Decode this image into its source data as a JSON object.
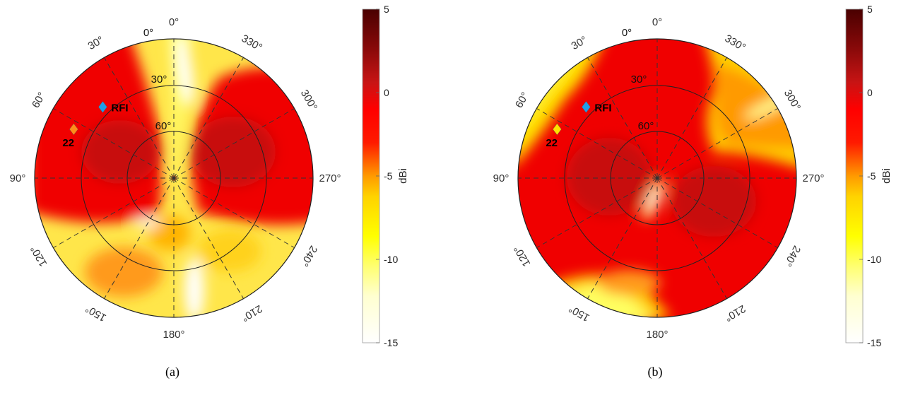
{
  "chart_data": [
    {
      "type": "heatmap",
      "projection": "polar",
      "caption": "(a)",
      "azimuth_labels": [
        "0°",
        "330°",
        "300°",
        "270°",
        "240°",
        "210°",
        "180°",
        "150°",
        "120°",
        "90°",
        "60°",
        "30°"
      ],
      "azimuth_values": [
        0,
        330,
        300,
        270,
        240,
        210,
        180,
        150,
        120,
        90,
        60,
        30
      ],
      "elevation_labels": [
        "0°",
        "30°",
        "60°"
      ],
      "elevation_values": [
        0,
        30,
        60
      ],
      "colorbar": {
        "label": "dBi",
        "ticks": [
          5,
          0,
          -5,
          -10,
          -15
        ],
        "range": [
          -15,
          5
        ],
        "colormap": "hot"
      },
      "markers": [
        {
          "label": "RFI",
          "shape": "diamond",
          "color": "#1e9ee8",
          "azimuth": 45,
          "elevation": 25
        },
        {
          "label": "22",
          "shape": "diamond",
          "color": "#ff8c1a",
          "azimuth": 64,
          "elevation": 18
        }
      ]
    },
    {
      "type": "heatmap",
      "projection": "polar",
      "caption": "(b)",
      "azimuth_labels": [
        "0°",
        "330°",
        "300°",
        "270°",
        "240°",
        "210°",
        "180°",
        "150°",
        "120°",
        "90°",
        "60°",
        "30°"
      ],
      "azimuth_values": [
        0,
        330,
        300,
        270,
        240,
        210,
        180,
        150,
        120,
        90,
        60,
        30
      ],
      "elevation_labels": [
        "0°",
        "30°",
        "60°"
      ],
      "elevation_values": [
        0,
        30,
        60
      ],
      "colorbar": {
        "label": "dBi",
        "ticks": [
          5,
          0,
          -5,
          -10,
          -15
        ],
        "range": [
          -15,
          5
        ],
        "colormap": "hot"
      },
      "markers": [
        {
          "label": "RFI",
          "shape": "diamond",
          "color": "#1e9ee8",
          "azimuth": 45,
          "elevation": 25
        },
        {
          "label": "22",
          "shape": "diamond",
          "color": "#ffe000",
          "azimuth": 64,
          "elevation": 18
        }
      ]
    }
  ]
}
